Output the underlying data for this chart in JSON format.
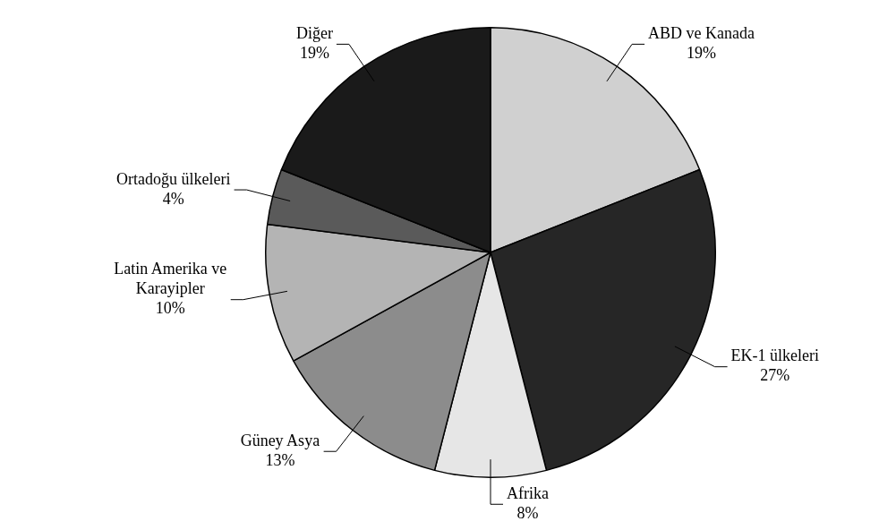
{
  "chart_data": {
    "type": "pie",
    "categories": [
      "ABD ve Kanada",
      "EK-1 ülkeleri",
      "Afrika",
      "Güney Asya",
      "Latin Amerika ve Karayipler",
      "Ortadoğu ülkeleri",
      "Diğer"
    ],
    "values": [
      19,
      27,
      8,
      13,
      10,
      4,
      19
    ],
    "value_labels": [
      "19%",
      "27%",
      "8%",
      "13%",
      "10%",
      "4%",
      "19%"
    ],
    "colors": [
      "#d0d0d0",
      "#262626",
      "#e6e6e6",
      "#8c8c8c",
      "#b4b4b4",
      "#5a5a5a",
      "#1a1a1a"
    ],
    "legend": false
  }
}
